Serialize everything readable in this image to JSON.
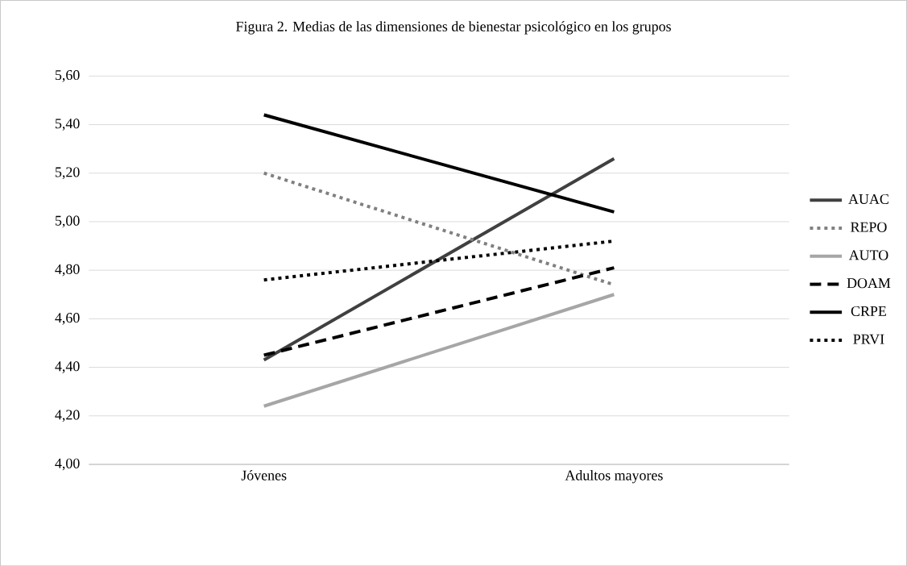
{
  "chart_data": {
    "type": "line",
    "title": "Figura 2. Medias de las dimensiones de bienestar psicológico en los grupos",
    "categories": [
      "Jóvenes",
      "Adultos mayores"
    ],
    "series": [
      {
        "name": "AUAC",
        "color": "#404040",
        "line_style": "solid",
        "values": [
          4.43,
          5.26
        ]
      },
      {
        "name": "REPO",
        "color": "#808080",
        "line_style": "dotted",
        "values": [
          5.2,
          4.74
        ]
      },
      {
        "name": "AUTO",
        "color": "#a6a6a6",
        "line_style": "solid",
        "values": [
          4.24,
          4.7
        ]
      },
      {
        "name": "DOAM",
        "color": "#000000",
        "line_style": "dashed",
        "values": [
          4.45,
          4.81
        ]
      },
      {
        "name": "CRPE",
        "color": "#000000",
        "line_style": "solid",
        "values": [
          5.44,
          5.04
        ]
      },
      {
        "name": "PRVI",
        "color": "#000000",
        "line_style": "dotted",
        "values": [
          4.76,
          4.92
        ]
      }
    ],
    "ylim": [
      4.0,
      5.6
    ],
    "yticks": [
      {
        "value": 4.0,
        "label": "4,00"
      },
      {
        "value": 4.2,
        "label": "4,20"
      },
      {
        "value": 4.4,
        "label": "4,40"
      },
      {
        "value": 4.6,
        "label": "4,60"
      },
      {
        "value": 4.8,
        "label": "4,80"
      },
      {
        "value": 5.0,
        "label": "5,00"
      },
      {
        "value": 5.2,
        "label": "5,20"
      },
      {
        "value": 5.4,
        "label": "5,40"
      },
      {
        "value": 5.6,
        "label": "5,60"
      }
    ],
    "grid": "y",
    "legend": "right",
    "marker": "none"
  }
}
